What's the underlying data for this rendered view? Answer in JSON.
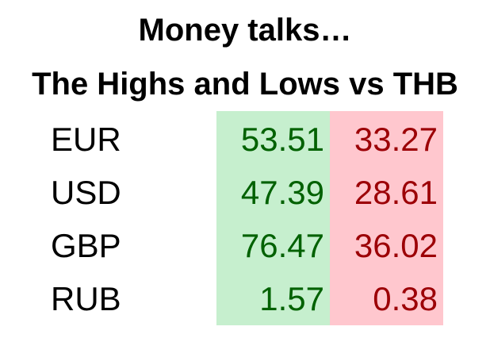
{
  "title_line1": "Money talks…",
  "title_line2": "The Highs and Lows vs THB",
  "colors": {
    "high_bg": "#c6efce",
    "high_text": "#006100",
    "low_bg": "#ffc7ce",
    "low_text": "#9c0006"
  },
  "rows": [
    {
      "currency": "EUR",
      "high": "53.51",
      "low": "33.27"
    },
    {
      "currency": "USD",
      "high": "47.39",
      "low": "28.61"
    },
    {
      "currency": "GBP",
      "high": "76.47",
      "low": "36.02"
    },
    {
      "currency": "RUB",
      "high": "1.57",
      "low": "0.38"
    }
  ]
}
